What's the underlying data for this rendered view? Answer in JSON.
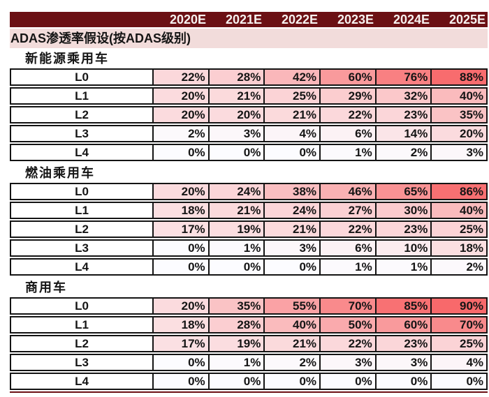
{
  "chart_data": {
    "type": "table",
    "title": "ADAS渗透率假设(按ADAS级别)",
    "unit": "%",
    "columns": [
      "2020E",
      "2021E",
      "2022E",
      "2023E",
      "2024E",
      "2025E"
    ],
    "groups": [
      {
        "name": "新能源乘用车",
        "rows": [
          {
            "label": "L0",
            "values": [
              22,
              28,
              42,
              60,
              76,
              88
            ]
          },
          {
            "label": "L1",
            "values": [
              20,
              21,
              25,
              29,
              32,
              40
            ]
          },
          {
            "label": "L2",
            "values": [
              20,
              20,
              21,
              22,
              23,
              35
            ]
          },
          {
            "label": "L3",
            "values": [
              2,
              3,
              4,
              6,
              14,
              20
            ]
          },
          {
            "label": "L4",
            "values": [
              0,
              0,
              0,
              1,
              2,
              3
            ]
          }
        ]
      },
      {
        "name": "燃油乘用车",
        "rows": [
          {
            "label": "L0",
            "values": [
              20,
              24,
              38,
              46,
              65,
              86
            ]
          },
          {
            "label": "L1",
            "values": [
              18,
              21,
              24,
              27,
              30,
              40
            ]
          },
          {
            "label": "L2",
            "values": [
              17,
              19,
              21,
              22,
              23,
              25
            ]
          },
          {
            "label": "L3",
            "values": [
              0,
              1,
              3,
              6,
              10,
              18
            ]
          },
          {
            "label": "L4",
            "values": [
              0,
              0,
              0,
              1,
              1,
              2
            ]
          }
        ]
      },
      {
        "name": "商用车",
        "rows": [
          {
            "label": "L0",
            "values": [
              20,
              35,
              55,
              70,
              85,
              90
            ]
          },
          {
            "label": "L1",
            "values": [
              18,
              28,
              40,
              50,
              60,
              70
            ]
          },
          {
            "label": "L2",
            "values": [
              17,
              19,
              21,
              22,
              23,
              25
            ]
          },
          {
            "label": "L3",
            "values": [
              0,
              1,
              2,
              3,
              3,
              4
            ]
          },
          {
            "label": "L4",
            "values": [
              0,
              0,
              0,
              0,
              0,
              0
            ]
          }
        ]
      }
    ],
    "heat_scale": {
      "min_color": "#FCFCFF",
      "max_color": "#F8696B",
      "domain": [
        0,
        90
      ]
    },
    "layout": {
      "grid": "black cell borders",
      "value_align": "right",
      "label_align": "center"
    }
  },
  "colors": {
    "header_bg": "#6B1014",
    "header_text": "#F7F2F0",
    "title_bg": "#F2DCDB",
    "border": "#141414",
    "accent_line": "#6B1014"
  }
}
